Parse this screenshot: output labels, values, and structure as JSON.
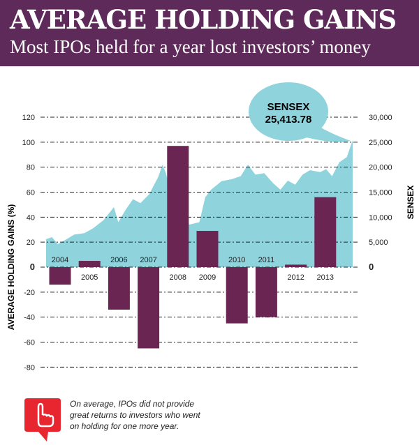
{
  "header": {
    "title": "AVERAGE HOLDING GAINS",
    "subtitle": "Most IPOs held for a year lost investors’ money"
  },
  "chart_data": {
    "type": "bar",
    "categories": [
      "2004",
      "2005",
      "2006",
      "2007",
      "2008",
      "2009",
      "2010",
      "2011",
      "2012",
      "2013"
    ],
    "series": [
      {
        "name": "AVERAGE HOLDING GAINS (%)",
        "values": [
          -14,
          5,
          -34,
          -65,
          97,
          29,
          -45,
          -40,
          2,
          56
        ],
        "color": "#6a2553"
      }
    ],
    "area_series": {
      "name": "SENSEX",
      "color": "#8fd3dc",
      "points": [
        [
          2004.0,
          5600
        ],
        [
          2004.2,
          6000
        ],
        [
          2004.4,
          4600
        ],
        [
          2004.7,
          5600
        ],
        [
          2004.95,
          6500
        ],
        [
          2005.3,
          6800
        ],
        [
          2005.6,
          7800
        ],
        [
          2005.95,
          9400
        ],
        [
          2006.3,
          12000
        ],
        [
          2006.45,
          9000
        ],
        [
          2006.7,
          11500
        ],
        [
          2006.95,
          13600
        ],
        [
          2007.2,
          12800
        ],
        [
          2007.5,
          14600
        ],
        [
          2007.8,
          18000
        ],
        [
          2007.95,
          20500
        ],
        [
          2008.05,
          19000
        ],
        [
          2008.2,
          16000
        ],
        [
          2008.4,
          17000
        ],
        [
          2008.55,
          13500
        ],
        [
          2008.75,
          11500
        ],
        [
          2008.85,
          8500
        ],
        [
          2009.2,
          9000
        ],
        [
          2009.4,
          14000
        ],
        [
          2009.6,
          15500
        ],
        [
          2009.95,
          17200
        ],
        [
          2010.3,
          17600
        ],
        [
          2010.6,
          18200
        ],
        [
          2010.85,
          20500
        ],
        [
          2011.1,
          18500
        ],
        [
          2011.4,
          18800
        ],
        [
          2011.7,
          16800
        ],
        [
          2011.95,
          15500
        ],
        [
          2012.2,
          17300
        ],
        [
          2012.45,
          16500
        ],
        [
          2012.7,
          18500
        ],
        [
          2012.95,
          19400
        ],
        [
          2013.3,
          19000
        ],
        [
          2013.5,
          19600
        ],
        [
          2013.7,
          18200
        ],
        [
          2013.95,
          21000
        ],
        [
          2014.2,
          22000
        ],
        [
          2014.4,
          25400
        ]
      ]
    },
    "ylabel": "AVERAGE HOLDING GAINS (%)",
    "y2label": "SENSEX",
    "ylim": [
      -80,
      120
    ],
    "y2lim": [
      0,
      30000
    ],
    "yticks": [
      "120",
      "100",
      "80",
      "60",
      "40",
      "20",
      "0",
      "-20",
      "-40",
      "-60",
      "-80"
    ],
    "y2ticks": [
      "30,000",
      "25,000",
      "20,000",
      "15,000",
      "10,000",
      "5,000",
      "0"
    ],
    "grid": true,
    "annotation": {
      "label": "SENSEX",
      "value": "25,413.78"
    }
  },
  "note": {
    "text": "On average, IPOs did not provide great returns to investors who went on holding for one more year.",
    "icon": "pointing-finger-icon",
    "color": "#e8262f"
  }
}
